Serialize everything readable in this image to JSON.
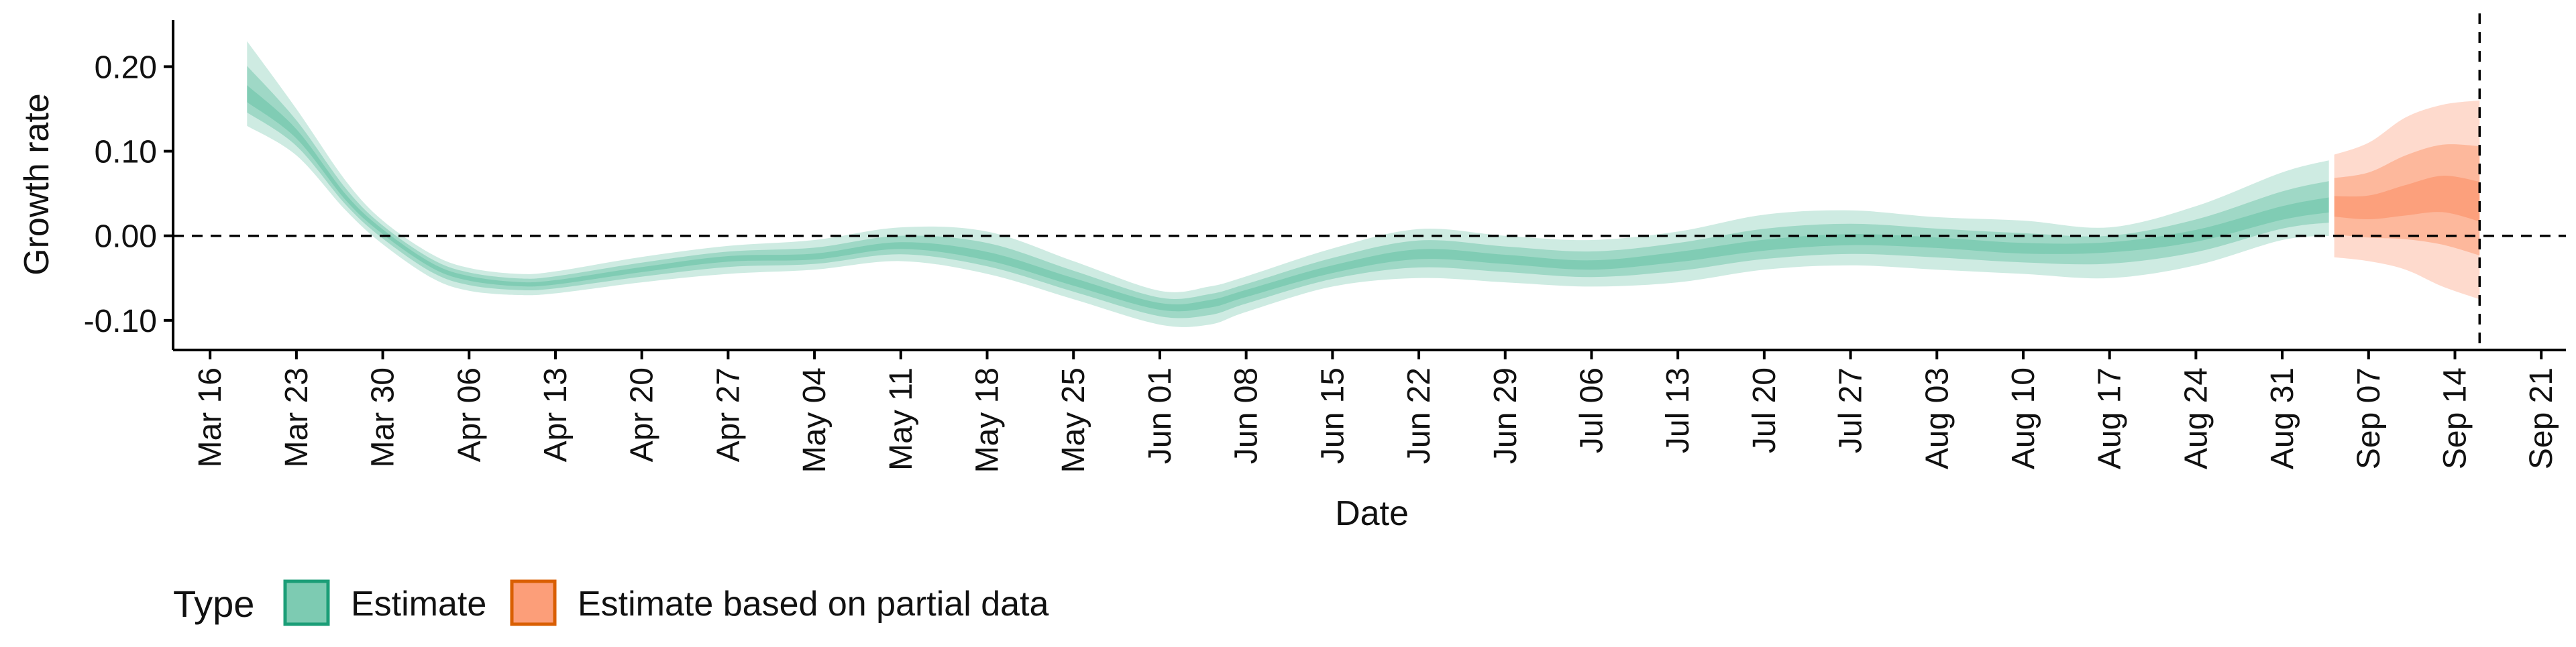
{
  "chart_data": {
    "type": "area",
    "title": "",
    "xlabel": "Date",
    "ylabel": "Growth rate",
    "x_start": "2020-03-16",
    "x_end": "2020-09-21",
    "xlim": [
      "2020-03-13",
      "2020-09-23"
    ],
    "ylim": [
      -0.135,
      0.255
    ],
    "x_ticks": [
      "Mar 16",
      "Mar 23",
      "Mar 30",
      "Apr 06",
      "Apr 13",
      "Apr 20",
      "Apr 27",
      "May 04",
      "May 11",
      "May 18",
      "May 25",
      "Jun 01",
      "Jun 08",
      "Jun 15",
      "Jun 22",
      "Jun 29",
      "Jul 06",
      "Jul 13",
      "Jul 20",
      "Jul 27",
      "Aug 03",
      "Aug 10",
      "Aug 17",
      "Aug 24",
      "Aug 31",
      "Sep 07",
      "Sep 14",
      "Sep 21"
    ],
    "y_ticks": [
      {
        "value": 0.2,
        "label": "0.20"
      },
      {
        "value": 0.1,
        "label": "0.10"
      },
      {
        "value": 0.0,
        "label": "0.00"
      },
      {
        "value": -0.1,
        "label": "-0.10"
      }
    ],
    "reference_lines": {
      "y": 0.0,
      "x": "2020-09-16",
      "style": "dashed"
    },
    "grid": false,
    "legend": {
      "title": "Type",
      "position": "bottom-left",
      "items": [
        {
          "label": "Estimate",
          "color": "#66c2a5"
        },
        {
          "label": "Estimate based on partial data",
          "color": "#fc8d62"
        }
      ]
    },
    "series": [
      {
        "name": "Estimate",
        "color": "#66c2a5",
        "points": [
          {
            "x": "2020-03-19",
            "y": 0.165,
            "lo90": 0.13,
            "hi90": 0.23
          },
          {
            "x": "2020-03-23",
            "y": 0.12,
            "lo90": 0.095,
            "hi90": 0.15
          },
          {
            "x": "2020-03-27",
            "y": 0.045,
            "lo90": 0.03,
            "hi90": 0.065
          },
          {
            "x": "2020-03-30",
            "y": 0.005,
            "lo90": -0.01,
            "hi90": 0.018
          },
          {
            "x": "2020-04-03",
            "y": -0.035,
            "lo90": -0.05,
            "hi90": -0.022
          },
          {
            "x": "2020-04-06",
            "y": -0.05,
            "lo90": -0.065,
            "hi90": -0.038
          },
          {
            "x": "2020-04-10",
            "y": -0.057,
            "lo90": -0.07,
            "hi90": -0.045
          },
          {
            "x": "2020-04-13",
            "y": -0.055,
            "lo90": -0.068,
            "hi90": -0.042
          },
          {
            "x": "2020-04-20",
            "y": -0.04,
            "lo90": -0.055,
            "hi90": -0.025
          },
          {
            "x": "2020-04-27",
            "y": -0.027,
            "lo90": -0.045,
            "hi90": -0.012
          },
          {
            "x": "2020-05-04",
            "y": -0.025,
            "lo90": -0.04,
            "hi90": -0.005
          },
          {
            "x": "2020-05-11",
            "y": -0.012,
            "lo90": -0.03,
            "hi90": 0.01
          },
          {
            "x": "2020-05-18",
            "y": -0.025,
            "lo90": -0.045,
            "hi90": 0.005
          },
          {
            "x": "2020-05-25",
            "y": -0.055,
            "lo90": -0.075,
            "hi90": -0.03
          },
          {
            "x": "2020-06-01",
            "y": -0.083,
            "lo90": -0.105,
            "hi90": -0.065
          },
          {
            "x": "2020-06-05",
            "y": -0.08,
            "lo90": -0.105,
            "hi90": -0.06
          },
          {
            "x": "2020-06-08",
            "y": -0.068,
            "lo90": -0.09,
            "hi90": -0.048
          },
          {
            "x": "2020-06-15",
            "y": -0.04,
            "lo90": -0.06,
            "hi90": -0.015
          },
          {
            "x": "2020-06-22",
            "y": -0.022,
            "lo90": -0.05,
            "hi90": 0.008
          },
          {
            "x": "2020-06-29",
            "y": -0.028,
            "lo90": -0.055,
            "hi90": 0.0
          },
          {
            "x": "2020-07-06",
            "y": -0.035,
            "lo90": -0.06,
            "hi90": -0.005
          },
          {
            "x": "2020-07-13",
            "y": -0.025,
            "lo90": -0.055,
            "hi90": 0.005
          },
          {
            "x": "2020-07-20",
            "y": -0.012,
            "lo90": -0.04,
            "hi90": 0.025
          },
          {
            "x": "2020-07-27",
            "y": -0.005,
            "lo90": -0.035,
            "hi90": 0.03
          },
          {
            "x": "2020-08-03",
            "y": -0.008,
            "lo90": -0.04,
            "hi90": 0.022
          },
          {
            "x": "2020-08-10",
            "y": -0.015,
            "lo90": -0.045,
            "hi90": 0.018
          },
          {
            "x": "2020-08-17",
            "y": -0.012,
            "lo90": -0.05,
            "hi90": 0.01
          },
          {
            "x": "2020-08-24",
            "y": 0.0,
            "lo90": -0.035,
            "hi90": 0.035
          },
          {
            "x": "2020-08-31",
            "y": 0.025,
            "lo90": -0.005,
            "hi90": 0.075
          },
          {
            "x": "2020-09-04",
            "y": 0.035,
            "lo90": 0.0,
            "hi90": 0.09
          }
        ]
      },
      {
        "name": "Estimate based on partial data",
        "color": "#fc8d62",
        "points": [
          {
            "x": "2020-09-04",
            "y": 0.035,
            "lo90": -0.025,
            "hi90": 0.095
          },
          {
            "x": "2020-09-07",
            "y": 0.032,
            "lo90": -0.03,
            "hi90": 0.11
          },
          {
            "x": "2020-09-10",
            "y": 0.04,
            "lo90": -0.04,
            "hi90": 0.14
          },
          {
            "x": "2020-09-13",
            "y": 0.05,
            "lo90": -0.06,
            "hi90": 0.155
          },
          {
            "x": "2020-09-16",
            "y": 0.04,
            "lo90": -0.075,
            "hi90": 0.16
          }
        ]
      }
    ]
  }
}
